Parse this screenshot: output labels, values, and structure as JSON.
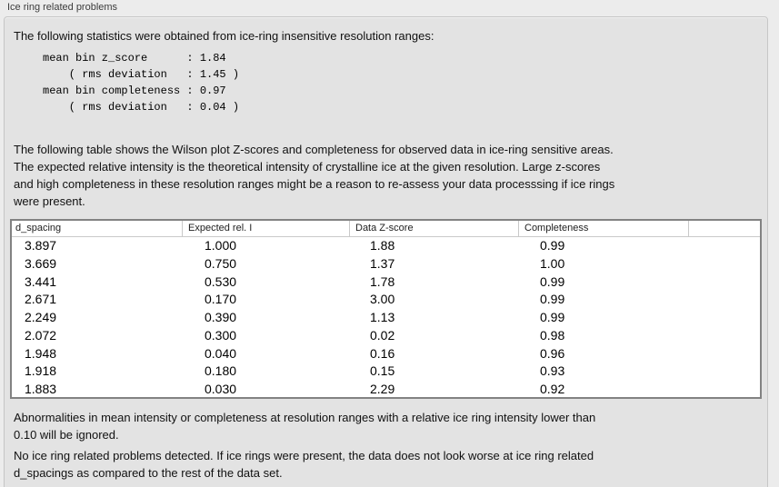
{
  "panel": {
    "title": "Ice ring related problems",
    "intro": "The following statistics were obtained from ice-ring insensitive resolution ranges:",
    "stats_block": "mean bin z_score      : 1.84\n    ( rms deviation   : 1.45 )\nmean bin completeness : 0.97\n    ( rms deviation   : 0.04 )",
    "table_description": "The following table shows the Wilson plot Z-scores and completeness for observed data in ice-ring sensitive areas.\nThe expected relative intensity is the theoretical intensity of crystalline ice at the given resolution. Large z-scores\nand high completeness in these resolution ranges might be a reason to re-assess your data processsing if ice rings\nwere present.",
    "note_ignore": "Abnormalities in mean intensity or completeness at resolution ranges with a relative ice ring intensity lower than\n0.10 will be ignored.",
    "conclusion": "No ice ring related problems detected. If ice rings were present, the data does not look worse at ice ring related\nd_spacings as compared to the rest of the data set."
  },
  "table": {
    "columns": [
      "d_spacing",
      "Expected rel. I",
      "Data Z-score",
      "Completeness",
      ""
    ],
    "rows": [
      [
        "3.897",
        "1.000",
        "1.88",
        "0.99"
      ],
      [
        "3.669",
        "0.750",
        "1.37",
        "1.00"
      ],
      [
        "3.441",
        "0.530",
        "1.78",
        "0.99"
      ],
      [
        "2.671",
        "0.170",
        "3.00",
        "0.99"
      ],
      [
        "2.249",
        "0.390",
        "1.13",
        "0.99"
      ],
      [
        "2.072",
        "0.300",
        "0.02",
        "0.98"
      ],
      [
        "1.948",
        "0.040",
        "0.16",
        "0.96"
      ],
      [
        "1.918",
        "0.180",
        "0.15",
        "0.93"
      ],
      [
        "1.883",
        "0.030",
        "2.29",
        "0.92"
      ]
    ]
  },
  "colors": {
    "page_background": "#ececec",
    "group_box_fill": "#e3e3e3",
    "group_box_border": "#c6c6c6",
    "table_border": "#828282",
    "table_background": "#ffffff",
    "header_separator": "#c9c9c9",
    "text": "#111111"
  }
}
